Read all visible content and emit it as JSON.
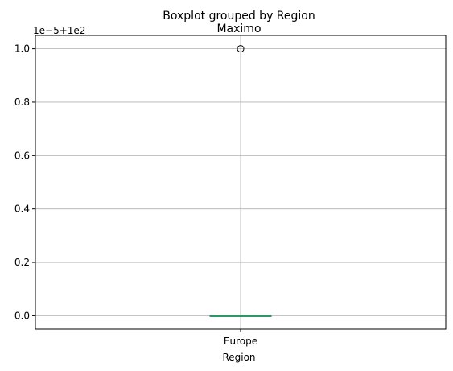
{
  "chart_data": {
    "type": "boxplot",
    "suptitle": "Boxplot grouped by Region",
    "title": "Maximo",
    "xlabel": "Region",
    "ylabel": "",
    "categories": [
      "Europe"
    ],
    "offset_text": "1e−5+1e2",
    "yticks": [
      {
        "value": 0.0,
        "label": "0.0"
      },
      {
        "value": 0.2,
        "label": "0.2"
      },
      {
        "value": 0.4,
        "label": "0.4"
      },
      {
        "value": 0.6,
        "label": "0.6"
      },
      {
        "value": 0.8,
        "label": "0.8"
      },
      {
        "value": 1.0,
        "label": "1.0"
      }
    ],
    "ylim": [
      -0.05,
      1.05
    ],
    "grid": true,
    "boxes": [
      {
        "category": "Europe",
        "whisker_low": 0.0,
        "q1": 0.0,
        "median": 0.0,
        "q3": 0.0,
        "whisker_high": 0.0,
        "outliers": [
          1.0
        ]
      }
    ],
    "colors": {
      "box": "#1f77b4",
      "median": "#2ca02c",
      "grid": "#b0b0b0",
      "outlier_edge": "#000000"
    }
  }
}
